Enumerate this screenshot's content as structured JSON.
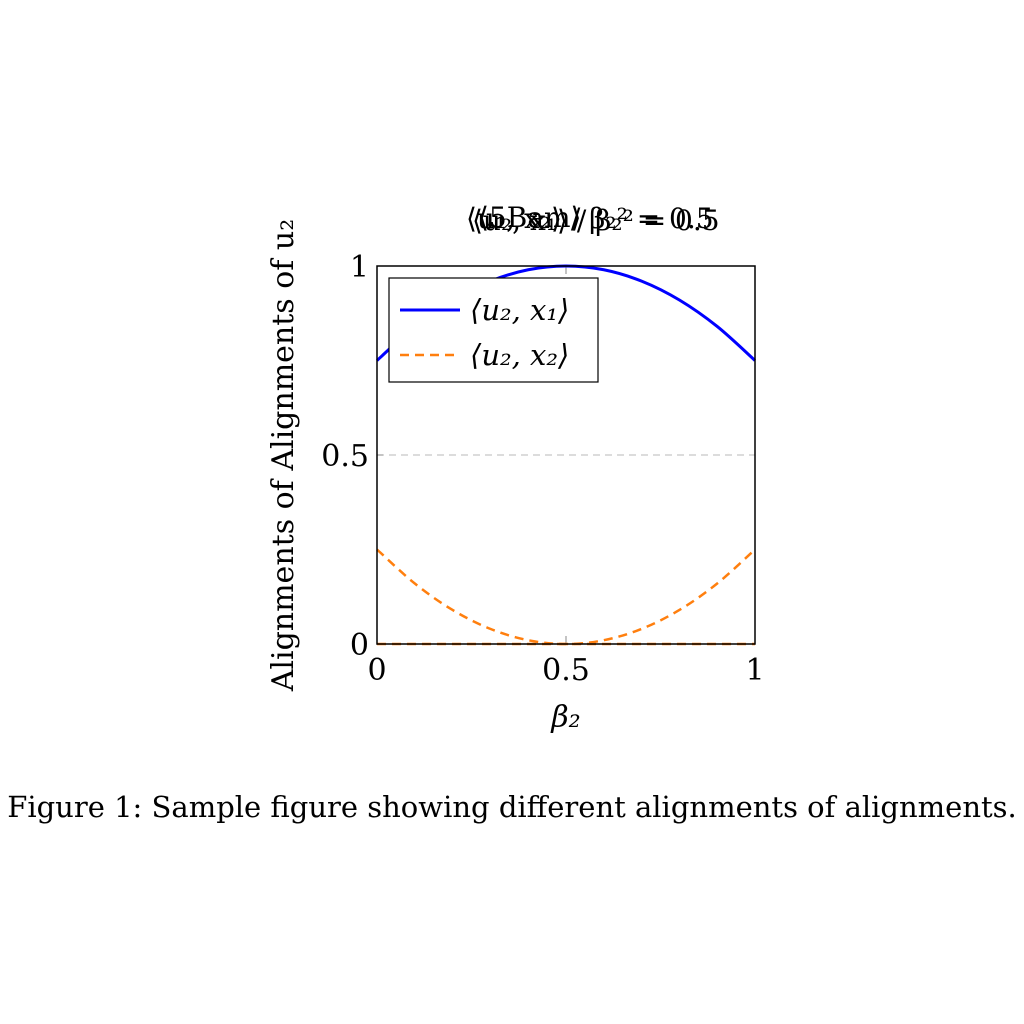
{
  "chart_data": {
    "type": "line",
    "title_fragments": [
      "⟨u₁, x₂⟩ / β₂² = 0.5",
      "⟨u₂, x₁⟩ / β₂² = 0.5",
      "⟨5Bam⟩"
    ],
    "xlabel": "β₂",
    "ylabel": "Alignments of Alignments of u₂",
    "xlim": [
      0,
      1
    ],
    "ylim": [
      0,
      1
    ],
    "x_ticks": [
      "0",
      "0.5",
      "1"
    ],
    "y_ticks": [
      "0",
      "0.5",
      "1"
    ],
    "grid": "major dashed",
    "legend_placement": "top-left",
    "series": [
      {
        "name": "⟨u₂, x₁⟩",
        "style": "solid",
        "color": "#0000ff",
        "x": [
          0,
          0.1,
          0.2,
          0.3,
          0.4,
          0.5,
          0.6,
          0.7,
          0.8,
          0.9,
          1
        ],
        "y": [
          0.75,
          0.84,
          0.91,
          0.96,
          0.99,
          1.0,
          0.99,
          0.96,
          0.91,
          0.84,
          0.75
        ]
      },
      {
        "name": "⟨u₂, x₂⟩",
        "style": "dashed",
        "color": "#ff7f0e",
        "x": [
          0,
          0.1,
          0.2,
          0.3,
          0.4,
          0.5,
          0.6,
          0.7,
          0.8,
          0.9,
          1
        ],
        "y": [
          0.25,
          0.16,
          0.09,
          0.04,
          0.01,
          0.0,
          0.01,
          0.04,
          0.09,
          0.16,
          0.25
        ]
      },
      {
        "name": "",
        "style": "dashed",
        "color": "#ff7f0e",
        "x": [
          0,
          1
        ],
        "y": [
          0,
          0
        ]
      }
    ]
  },
  "caption": "Figure 1: Sample figure showing different alignments of alignments."
}
